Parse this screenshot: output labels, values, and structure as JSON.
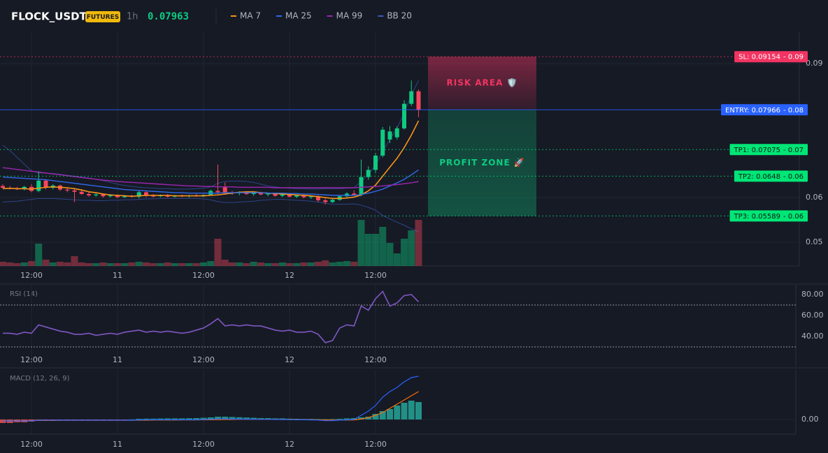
{
  "header": {
    "symbol": "FLOCK_USDT",
    "badge": "FUTURES",
    "interval": "1h",
    "price": "0.07963"
  },
  "chart_data": [
    {
      "type": "candlestick",
      "categories": [
        null,
        null,
        null,
        null,
        "12:00",
        null,
        null,
        null,
        null,
        null,
        null,
        null,
        null,
        null,
        null,
        null,
        "11",
        null,
        null,
        null,
        null,
        null,
        null,
        null,
        null,
        null,
        null,
        null,
        "12:00",
        null,
        null,
        null,
        null,
        null,
        null,
        null,
        null,
        null,
        null,
        null,
        "12",
        null,
        null,
        null,
        null,
        null,
        null,
        null,
        null,
        null,
        null,
        null,
        "12:00",
        null,
        null,
        null,
        null,
        null,
        null
      ],
      "open": [
        0.0626,
        0.0622,
        0.062,
        0.0619,
        0.0624,
        0.0615,
        0.0638,
        0.0622,
        0.0627,
        0.0618,
        0.0616,
        0.0613,
        0.0608,
        0.0605,
        0.0607,
        0.0603,
        0.0605,
        0.0601,
        0.0604,
        0.0602,
        0.0612,
        0.0604,
        0.0603,
        0.0605,
        0.0602,
        0.0604,
        0.0603,
        0.0605,
        0.0603,
        0.0606,
        0.0615,
        0.0624,
        0.0611,
        0.061,
        0.0612,
        0.0608,
        0.0611,
        0.0607,
        0.0609,
        0.0604,
        0.0607,
        0.0602,
        0.0605,
        0.0601,
        0.0603,
        0.0594,
        0.059,
        0.0595,
        0.0603,
        0.0609,
        0.0606,
        0.0646,
        0.0662,
        0.0694,
        0.073,
        0.0735,
        0.0755,
        0.081,
        0.0838
      ],
      "high": [
        0.063,
        0.0626,
        0.0624,
        0.0626,
        0.063,
        0.0659,
        0.0641,
        0.063,
        0.0629,
        0.0622,
        0.062,
        0.0617,
        0.0612,
        0.061,
        0.0609,
        0.0608,
        0.0607,
        0.0606,
        0.0606,
        0.0615,
        0.0614,
        0.0608,
        0.0607,
        0.0608,
        0.0606,
        0.0607,
        0.0606,
        0.0608,
        0.0607,
        0.0618,
        0.0674,
        0.0634,
        0.0615,
        0.0614,
        0.0614,
        0.0613,
        0.0613,
        0.0611,
        0.0611,
        0.0609,
        0.0609,
        0.0607,
        0.0607,
        0.0605,
        0.0605,
        0.0598,
        0.0597,
        0.0605,
        0.0612,
        0.0616,
        0.0685,
        0.067,
        0.07,
        0.0758,
        0.076,
        0.076,
        0.0818,
        0.0862,
        0.0842
      ],
      "low": [
        0.062,
        0.0618,
        0.0617,
        0.0616,
        0.0612,
        0.0612,
        0.0618,
        0.0618,
        0.0615,
        0.0612,
        0.059,
        0.0606,
        0.0602,
        0.0602,
        0.06,
        0.06,
        0.0599,
        0.0599,
        0.06,
        0.0598,
        0.0601,
        0.06,
        0.0601,
        0.06,
        0.06,
        0.0601,
        0.06,
        0.0602,
        0.0601,
        0.0604,
        0.0608,
        0.0608,
        0.0606,
        0.0605,
        0.0606,
        0.0604,
        0.0605,
        0.0603,
        0.0602,
        0.0601,
        0.06,
        0.0599,
        0.0598,
        0.0597,
        0.059,
        0.0585,
        0.0588,
        0.0593,
        0.06,
        0.0604,
        0.0603,
        0.064,
        0.0655,
        0.069,
        0.0722,
        0.073,
        0.0752,
        0.0805,
        0.078
      ],
      "close": [
        0.0622,
        0.062,
        0.0619,
        0.0624,
        0.0615,
        0.0638,
        0.0622,
        0.0627,
        0.0618,
        0.0616,
        0.0613,
        0.0608,
        0.0605,
        0.0607,
        0.0603,
        0.0605,
        0.0601,
        0.0604,
        0.0602,
        0.0612,
        0.0604,
        0.0603,
        0.0605,
        0.0602,
        0.0604,
        0.0603,
        0.0605,
        0.0603,
        0.0606,
        0.0615,
        0.0612,
        0.0611,
        0.061,
        0.0612,
        0.0608,
        0.0611,
        0.0607,
        0.0609,
        0.0604,
        0.0607,
        0.0602,
        0.0605,
        0.0601,
        0.0603,
        0.0594,
        0.059,
        0.0595,
        0.0603,
        0.0609,
        0.0606,
        0.0646,
        0.0662,
        0.0694,
        0.0752,
        0.0748,
        0.0755,
        0.081,
        0.0838,
        0.0796
      ],
      "up_color": "#0ecb81",
      "down_color": "#f6465d",
      "ylim": [
        0.0447,
        0.0972
      ],
      "yticks": [
        0.09,
        0.06,
        0.05
      ],
      "grid": true,
      "series": [
        {
          "name": "MA 7",
          "color": "#f7931a",
          "values": [
            0.062,
            0.0621,
            0.062,
            0.062,
            0.0619,
            0.0621,
            0.0623,
            0.0624,
            0.0623,
            0.0622,
            0.062,
            0.0617,
            0.0613,
            0.0611,
            0.0608,
            0.0606,
            0.0605,
            0.0604,
            0.0603,
            0.0604,
            0.0605,
            0.0605,
            0.0605,
            0.0605,
            0.0604,
            0.0604,
            0.0604,
            0.0604,
            0.0604,
            0.0605,
            0.0606,
            0.0608,
            0.061,
            0.0612,
            0.0613,
            0.0613,
            0.0611,
            0.061,
            0.0609,
            0.0608,
            0.0607,
            0.0606,
            0.0605,
            0.0604,
            0.0602,
            0.06,
            0.0598,
            0.0598,
            0.0599,
            0.0601,
            0.0606,
            0.0615,
            0.0628,
            0.0648,
            0.0668,
            0.0688,
            0.0712,
            0.074,
            0.0772
          ]
        },
        {
          "name": "MA 25",
          "color": "#2f6ae8",
          "values": [
            0.0646,
            0.0645,
            0.0644,
            0.0643,
            0.0642,
            0.0641,
            0.064,
            0.0638,
            0.0636,
            0.0634,
            0.0632,
            0.063,
            0.0628,
            0.0626,
            0.0624,
            0.0622,
            0.062,
            0.0618,
            0.0617,
            0.0616,
            0.0615,
            0.0614,
            0.0613,
            0.0612,
            0.0611,
            0.0611,
            0.061,
            0.061,
            0.061,
            0.061,
            0.061,
            0.0611,
            0.0611,
            0.0611,
            0.0611,
            0.0611,
            0.0611,
            0.061,
            0.061,
            0.061,
            0.0609,
            0.0609,
            0.0608,
            0.0608,
            0.0607,
            0.0606,
            0.0605,
            0.0605,
            0.0605,
            0.0605,
            0.0607,
            0.061,
            0.0614,
            0.0619,
            0.0626,
            0.0633,
            0.0641,
            0.0651,
            0.0662
          ]
        },
        {
          "name": "MA 99",
          "color": "#9c27b0",
          "values": [
            0.0667,
            0.0665,
            0.0663,
            0.0661,
            0.0659,
            0.0657,
            0.0655,
            0.0653,
            0.0651,
            0.0649,
            0.0647,
            0.0645,
            0.0643,
            0.0641,
            0.0639,
            0.0638,
            0.0636,
            0.0635,
            0.0634,
            0.0633,
            0.0632,
            0.0631,
            0.063,
            0.0629,
            0.0628,
            0.0627,
            0.0626,
            0.0626,
            0.0625,
            0.0625,
            0.0624,
            0.0624,
            0.0624,
            0.0623,
            0.0623,
            0.0623,
            0.0623,
            0.0623,
            0.0622,
            0.0622,
            0.0622,
            0.0622,
            0.0622,
            0.0622,
            0.0622,
            0.0622,
            0.0622,
            0.0622,
            0.0622,
            0.0622,
            0.0623,
            0.0624,
            0.0625,
            0.0626,
            0.0628,
            0.0629,
            0.0631,
            0.0633,
            0.0636
          ]
        }
      ],
      "bands": {
        "name": "BB 20",
        "color": "#2c4585",
        "upper": [
          0.0717,
          0.0705,
          0.069,
          0.0675,
          0.066,
          0.0655,
          0.0655,
          0.0654,
          0.0652,
          0.065,
          0.0648,
          0.0646,
          0.0644,
          0.0641,
          0.0638,
          0.0634,
          0.063,
          0.0627,
          0.0625,
          0.0623,
          0.0622,
          0.0621,
          0.062,
          0.062,
          0.0619,
          0.0619,
          0.0619,
          0.062,
          0.0621,
          0.0624,
          0.0632,
          0.0636,
          0.0637,
          0.0637,
          0.0636,
          0.0634,
          0.063,
          0.0626,
          0.0624,
          0.0622,
          0.0621,
          0.062,
          0.062,
          0.0619,
          0.0619,
          0.062,
          0.062,
          0.062,
          0.0621,
          0.0622,
          0.0636,
          0.0652,
          0.0672,
          0.0704,
          0.073,
          0.0755,
          0.079,
          0.083,
          0.0862
        ],
        "lower": [
          0.059,
          0.0591,
          0.0592,
          0.0594,
          0.0596,
          0.0598,
          0.0598,
          0.0598,
          0.0597,
          0.0596,
          0.0595,
          0.0594,
          0.0594,
          0.0593,
          0.0593,
          0.0594,
          0.0594,
          0.0595,
          0.0595,
          0.0596,
          0.0597,
          0.0597,
          0.0598,
          0.0598,
          0.0598,
          0.0598,
          0.0598,
          0.0598,
          0.0597,
          0.0595,
          0.0591,
          0.0589,
          0.0589,
          0.059,
          0.0591,
          0.0592,
          0.0594,
          0.0595,
          0.0596,
          0.0596,
          0.0595,
          0.0594,
          0.0593,
          0.0592,
          0.059,
          0.0587,
          0.0585,
          0.0585,
          0.0585,
          0.0586,
          0.0583,
          0.0578,
          0.0572,
          0.056,
          0.0552,
          0.0545,
          0.0538,
          0.053,
          0.0524
        ]
      },
      "levels": [
        {
          "label": "SL: 0.09154",
          "value": 0.09154,
          "axis_label": "- 0.09",
          "color": "#f23462",
          "text_color": "#ffffff",
          "style": "dotted"
        },
        {
          "label": "ENTRY: 0.07966",
          "value": 0.07966,
          "axis_label": "- 0.08",
          "color": "#2962ff",
          "text_color": "#ffffff",
          "style": "solid"
        },
        {
          "label": "TP1: 0.07075",
          "value": 0.07075,
          "axis_label": "- 0.07",
          "color": "#00e676",
          "text_color": "#0b1a12",
          "style": "dotted"
        },
        {
          "label": "TP2: 0.0648",
          "value": 0.0648,
          "axis_label": "- 0.06",
          "color": "#00e676",
          "text_color": "#0b1a12",
          "style": "dotted"
        },
        {
          "label": "TP3: 0.05589",
          "value": 0.05589,
          "axis_label": "- 0.06",
          "color": "#00e676",
          "text_color": "#0b1a12",
          "style": "dotted"
        }
      ],
      "zones": [
        {
          "label": "RISK AREA 🛡️",
          "color": "#f23462"
        },
        {
          "label": "PROFIT ZONE 🚀",
          "color": "#0ecb81"
        }
      ]
    },
    {
      "type": "bar",
      "values": [
        6,
        5,
        4,
        5,
        7,
        32,
        9,
        5,
        6,
        5,
        14,
        5,
        4,
        4,
        5,
        4,
        4,
        4,
        5,
        6,
        5,
        4,
        4,
        5,
        4,
        4,
        4,
        4,
        5,
        7,
        39,
        9,
        5,
        5,
        4,
        6,
        5,
        4,
        4,
        5,
        4,
        4,
        5,
        5,
        6,
        8,
        5,
        6,
        7,
        6,
        66,
        46,
        46,
        56,
        33,
        18,
        39,
        51,
        66
      ],
      "ylim": [
        0,
        80
      ]
    },
    {
      "type": "line",
      "title": "RSI (14)",
      "color": "#7e57c2",
      "values": [
        43,
        43,
        42,
        44,
        43,
        51,
        49,
        47,
        45,
        44,
        42,
        42,
        43,
        41,
        42,
        43,
        42,
        44,
        45,
        46,
        44,
        45,
        44,
        45,
        44,
        43,
        44,
        46,
        48,
        52,
        57,
        50,
        51,
        50,
        51,
        50,
        50,
        48,
        46,
        45,
        46,
        44,
        44,
        45,
        42,
        34,
        36,
        48,
        51,
        50,
        69,
        65,
        76,
        83,
        69,
        72,
        79,
        80,
        73
      ],
      "ylim": [
        11.3,
        89.3
      ],
      "yticks": [
        {
          "value": 80,
          "label": "80.00"
        },
        {
          "value": 60,
          "label": "60.00"
        },
        {
          "value": 40,
          "label": "40.00"
        }
      ],
      "bands": [
        70,
        30
      ]
    },
    {
      "type": "macd",
      "title": "MACD (12, 26, 9)",
      "macd": {
        "color": "#2962ff",
        "values": [
          -0.0001,
          -0.0001,
          -0.0001,
          -0.0001,
          -0.0001,
          -5e-05,
          -5e-05,
          -5e-05,
          -5e-05,
          -5e-05,
          -5e-05,
          -5e-05,
          -5e-05,
          -5e-05,
          -5e-05,
          -5e-05,
          -5e-05,
          -5e-05,
          -5e-05,
          -3e-05,
          -2e-05,
          -2e-05,
          -2e-05,
          -2e-05,
          -2e-05,
          -2e-05,
          -2e-05,
          -2e-05,
          0,
          2e-05,
          4e-05,
          4e-05,
          3e-05,
          3e-05,
          2e-05,
          2e-05,
          1e-05,
          1e-05,
          0,
          0,
          -1e-05,
          -2e-05,
          -2e-05,
          -3e-05,
          -4e-05,
          -8e-05,
          -8e-05,
          -5e-05,
          -2e-05,
          0,
          0.0003,
          0.0006,
          0.001,
          0.0016,
          0.002,
          0.0023,
          0.0027,
          0.003,
          0.0031
        ]
      },
      "signal": {
        "color": "#ff6d00",
        "values": [
          -8e-05,
          -8e-05,
          -8e-05,
          -8e-05,
          -8e-05,
          -7e-05,
          -7e-05,
          -7e-05,
          -6e-05,
          -6e-05,
          -6e-05,
          -6e-05,
          -6e-05,
          -6e-05,
          -6e-05,
          -6e-05,
          -6e-05,
          -6e-05,
          -6e-05,
          -5e-05,
          -5e-05,
          -4e-05,
          -4e-05,
          -4e-05,
          -4e-05,
          -3e-05,
          -3e-05,
          -3e-05,
          -2e-05,
          -2e-05,
          -1e-05,
          0,
          0,
          1e-05,
          1e-05,
          1e-05,
          1e-05,
          1e-05,
          1e-05,
          0,
          0,
          0,
          -1e-05,
          -1e-05,
          -2e-05,
          -3e-05,
          -4e-05,
          -4e-05,
          -4e-05,
          -3e-05,
          3e-05,
          0.00014,
          0.0003,
          0.0005,
          0.0008,
          0.0011,
          0.0014,
          0.0017,
          0.002
        ]
      },
      "histogram": [
        -0.00025,
        -0.00025,
        -0.0002,
        -0.0002,
        -0.00015,
        -0.0001,
        -0.0001,
        -0.0001,
        -8e-05,
        -8e-05,
        -6e-05,
        -5e-05,
        -4e-05,
        -3e-05,
        -2e-05,
        -2e-05,
        -1e-05,
        -1e-05,
        1e-05,
        5e-05,
        6e-05,
        6e-05,
        7e-05,
        8e-05,
        8e-05,
        8e-05,
        9e-05,
        0.0001,
        0.00012,
        0.00015,
        0.0002,
        0.0002,
        0.00018,
        0.00016,
        0.00014,
        0.00012,
        0.0001,
        0.0001,
        8e-05,
        8e-05,
        6e-05,
        5e-05,
        4e-05,
        4e-05,
        3e-05,
        2e-05,
        3e-05,
        5e-05,
        8e-05,
        0.0001,
        0.00015,
        0.0002,
        0.0004,
        0.0006,
        0.00075,
        0.001,
        0.0012,
        0.00135,
        0.00125
      ],
      "up_color": "#26a69a",
      "down_color": "#ef5350",
      "ylim": [
        -0.00105,
        0.00355
      ],
      "yticks": [
        {
          "value": 0,
          "label": "0.00"
        }
      ]
    }
  ]
}
